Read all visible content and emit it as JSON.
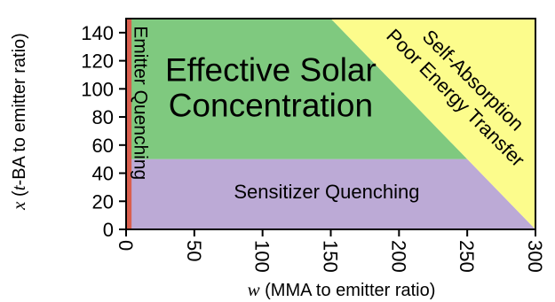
{
  "chart_data": {
    "type": "area",
    "title": "",
    "xlabel": {
      "var": "w",
      "text": " (MMA to emitter ratio)"
    },
    "ylabel": {
      "var": "x",
      "text": " (",
      "var2": "t",
      "text2": "-BA to emitter ratio)"
    },
    "xlim": [
      0,
      300
    ],
    "ylim": [
      0,
      150
    ],
    "xticks": [
      "0",
      "50",
      "100",
      "150",
      "200",
      "250",
      "300"
    ],
    "yticks": [
      "0",
      "20",
      "40",
      "60",
      "80",
      "100",
      "120",
      "140"
    ],
    "grid": false,
    "legend": "none",
    "regions": [
      {
        "label": [
          "Sensitizer Quenching"
        ],
        "color": "#bcaad6",
        "polygon": [
          [
            0,
            0
          ],
          [
            300,
            0
          ],
          [
            250,
            50
          ],
          [
            0,
            50
          ]
        ],
        "label_at": [
          147,
          27
        ]
      },
      {
        "label": [
          "Effective Solar",
          "Concentration"
        ],
        "color": "#7fc97f",
        "polygon": [
          [
            0,
            50
          ],
          [
            250,
            50
          ],
          [
            150,
            150
          ],
          [
            0,
            150
          ]
        ],
        "label_at": [
          106,
          101
        ]
      },
      {
        "label": [
          "Self-Absorption",
          "Poor Energy Transfer"
        ],
        "color": "#fcfc8c",
        "polygon": [
          [
            150,
            150
          ],
          [
            300,
            150
          ],
          [
            300,
            0
          ]
        ],
        "label_at": [
          248,
          100
        ],
        "rotate": 45
      },
      {
        "label": [
          "Emitter Quenching"
        ],
        "color": "#d95f4e",
        "polygon": [
          [
            0,
            0
          ],
          [
            4,
            0
          ],
          [
            4,
            150
          ],
          [
            0,
            150
          ]
        ],
        "label_at": [
          11,
          90
        ],
        "rotate": 90
      }
    ]
  }
}
